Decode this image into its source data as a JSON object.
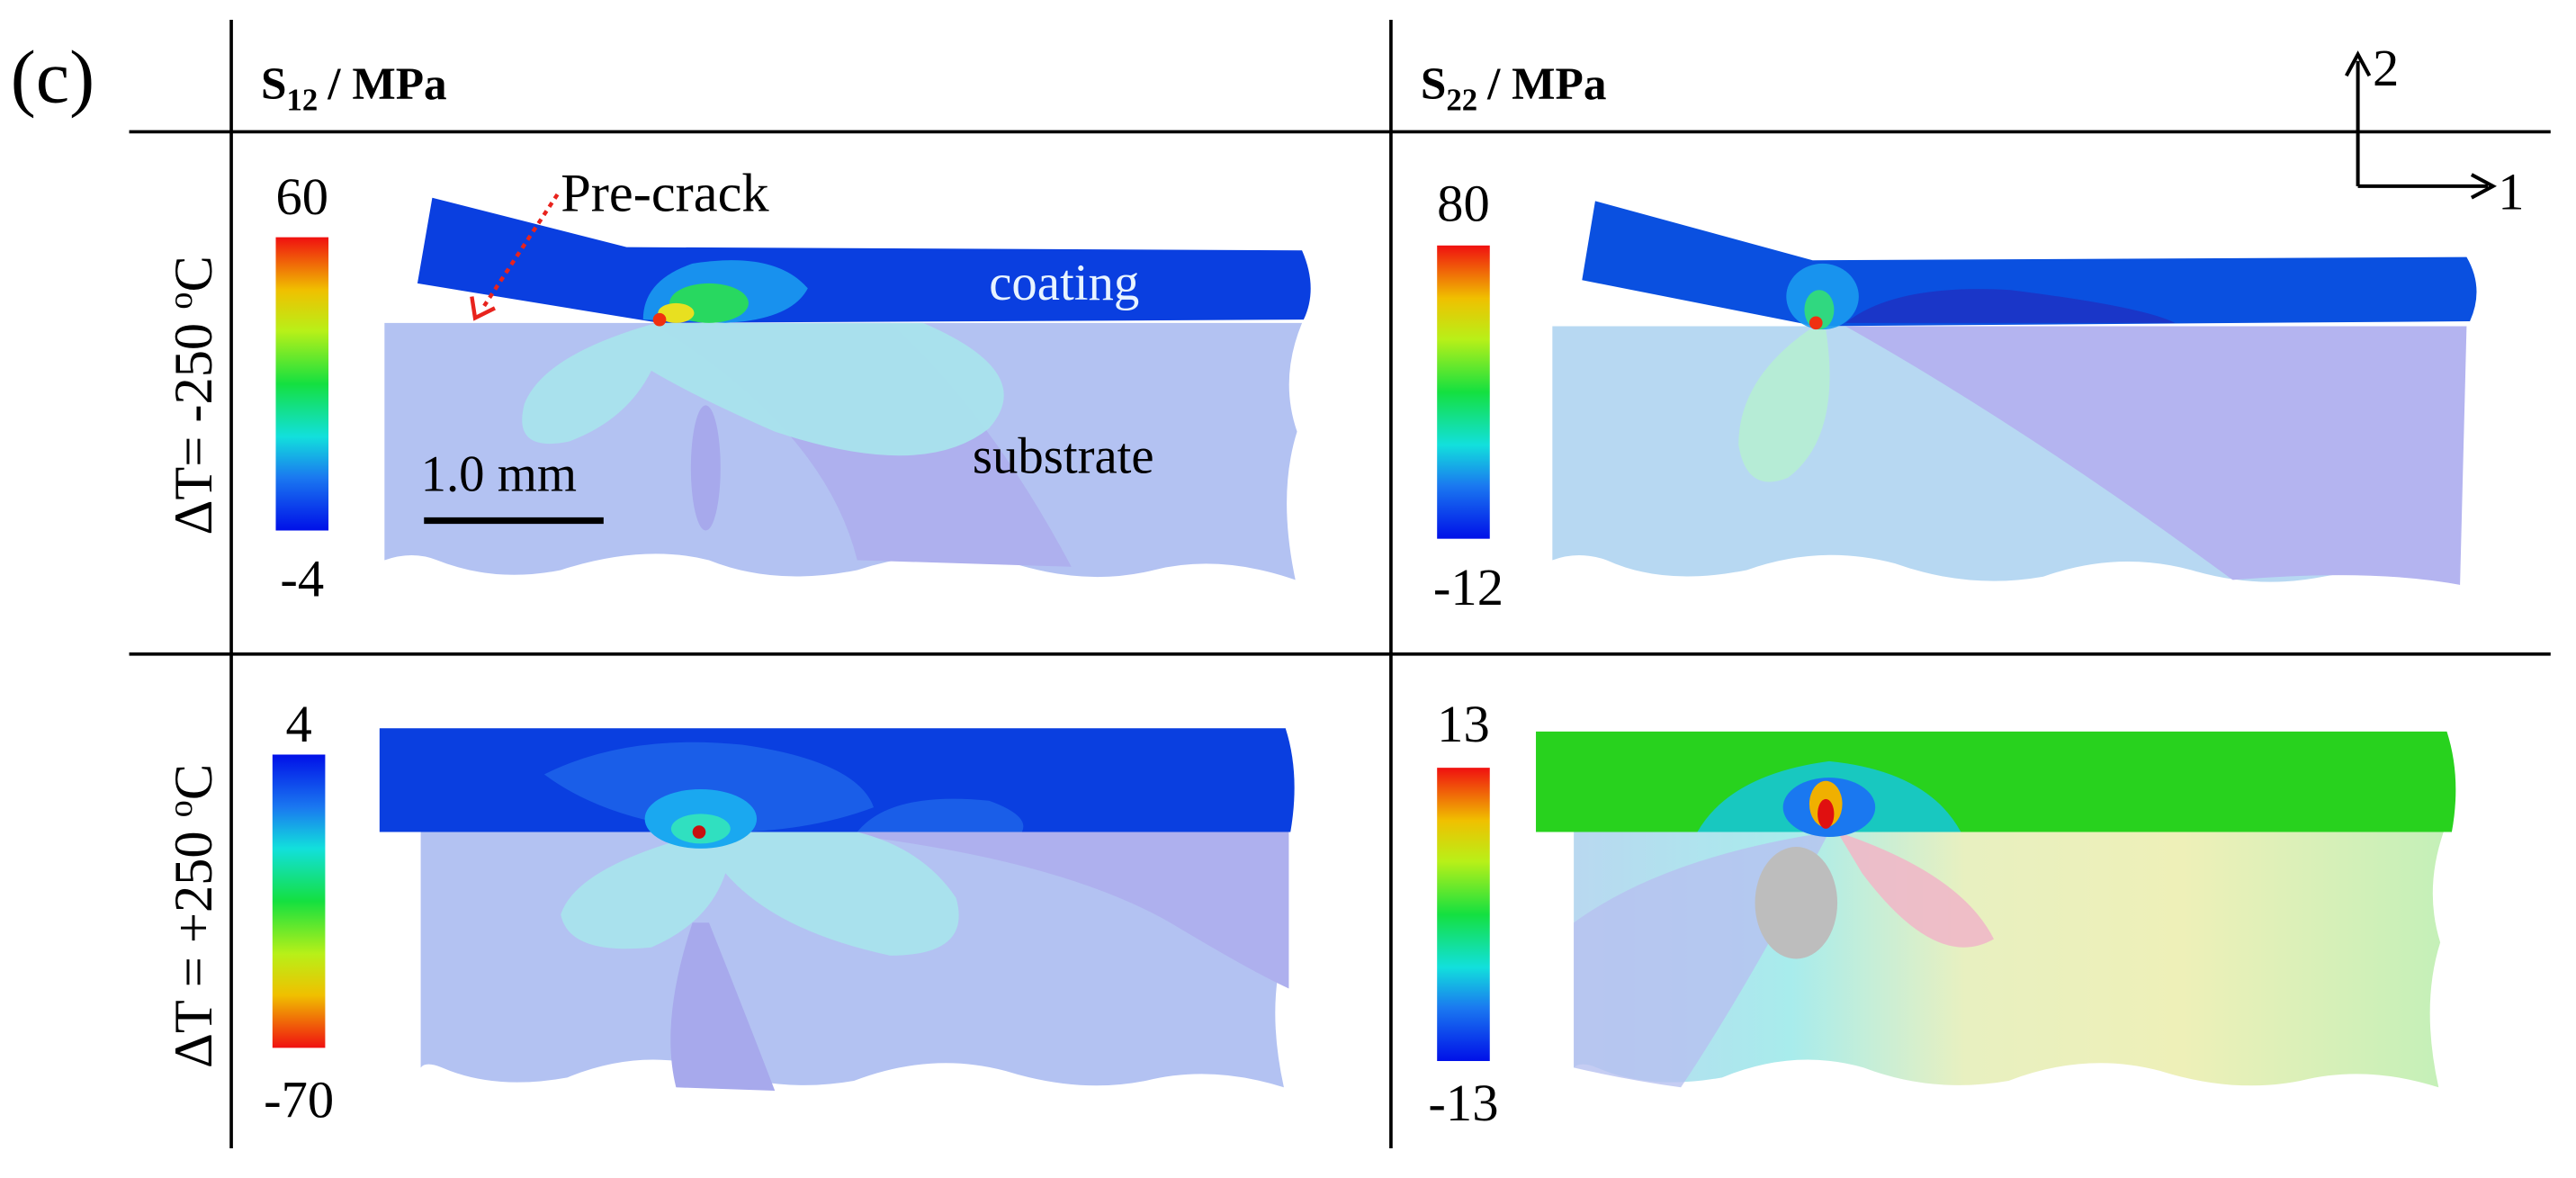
{
  "panel_label": "(c)",
  "columns": {
    "s12": {
      "base": "S",
      "sub": "12",
      "unit": "/ MPa"
    },
    "s22": {
      "base": "S",
      "sub": "22",
      "unit": "/ MPa"
    }
  },
  "axes": {
    "axis_2": "2",
    "axis_1": "1"
  },
  "rows": {
    "cold": {
      "prefix": "ΔT= -250 ",
      "sup": "o",
      "suffix": "C"
    },
    "hot": {
      "prefix": "ΔT = +250 ",
      "sup": "o",
      "suffix": "C"
    }
  },
  "colorbars": {
    "cold_s12": {
      "max": "60",
      "min": "-4"
    },
    "cold_s22": {
      "max": "80",
      "min": "-12"
    },
    "hot_s12": {
      "max": "4",
      "min": "-70"
    },
    "hot_s22": {
      "max": "13",
      "min": "-13"
    }
  },
  "annotations": {
    "precrack": "Pre-crack",
    "coating": "coating",
    "substrate": "substrate",
    "scale_bar": "1.0 mm"
  },
  "colors": {
    "coating_blue": "#0a3fe0",
    "substrate_lavender": "#b3c2f2",
    "coating_green": "#28d21e",
    "precrack_arrow": "#e8231d"
  }
}
